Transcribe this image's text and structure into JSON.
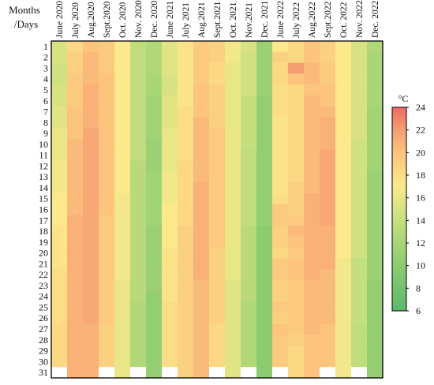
{
  "chart_data": {
    "type": "heatmap",
    "corner_label_line1": "Months",
    "corner_label_line2": "/Days",
    "columns": [
      "June 2020",
      "July 2020",
      "Aug.2020",
      "Sept.2020",
      "Oct. 2020",
      "Nov. 2020",
      "Dec. 2020",
      "June 2021",
      "July 2021",
      "Aug.2021",
      "Sept.2021",
      "Oct. 2021",
      "Nov.2021",
      "Dec. 2021",
      "June 2022",
      "July 2022",
      "Aug.2022",
      "Sept.2022",
      "Oct. 2022",
      "Nov. 2022",
      "Dec. 2022"
    ],
    "rows": [
      "1",
      "2",
      "3",
      "4",
      "5",
      "6",
      "7",
      "8",
      "9",
      "10",
      "11",
      "12",
      "13",
      "14",
      "15",
      "16",
      "17",
      "18",
      "19",
      "20",
      "21",
      "22",
      "23",
      "24",
      "25",
      "26",
      "27",
      "28",
      "29",
      "30",
      "31"
    ],
    "units": "°C",
    "colorbar": {
      "min": 6,
      "max": 24,
      "ticks": [
        6,
        8,
        10,
        12,
        14,
        16,
        18,
        20,
        22,
        24
      ]
    },
    "color_stops": [
      {
        "value": 6,
        "color": "#5cb96b"
      },
      {
        "value": 10,
        "color": "#8ccc70"
      },
      {
        "value": 14,
        "color": "#c6df7e"
      },
      {
        "value": 17,
        "color": "#fbe98c"
      },
      {
        "value": 20,
        "color": "#fcc47c"
      },
      {
        "value": 22,
        "color": "#f59e72"
      },
      {
        "value": 24,
        "color": "#ef6a62"
      }
    ],
    "missing_color": "#ffffff",
    "values": [
      [
        15,
        18.5,
        20,
        19.5,
        17,
        13.5,
        12.5,
        15.5,
        17.5,
        19.5,
        19,
        16.5,
        15,
        11,
        17,
        18.5,
        20,
        19,
        17,
        15,
        12.5
      ],
      [
        15,
        19,
        20.5,
        19.5,
        17,
        13.5,
        12.5,
        15.5,
        17.5,
        19.5,
        19,
        16.5,
        14.5,
        11,
        19,
        18.5,
        20,
        19,
        17,
        15,
        12
      ],
      [
        14.5,
        19,
        20.5,
        19.5,
        17,
        13.5,
        12.5,
        15.5,
        17.5,
        19.5,
        18.5,
        16,
        14.5,
        11,
        18.5,
        22,
        20.5,
        19.5,
        17,
        15,
        12
      ],
      [
        14.5,
        19.5,
        20.5,
        20,
        17,
        13.5,
        12,
        15,
        17.5,
        19.5,
        18.5,
        16,
        14.5,
        11,
        18.5,
        20,
        20.5,
        19.5,
        17,
        15,
        12
      ],
      [
        15,
        19.5,
        21,
        20,
        17,
        13.5,
        12,
        15,
        17.5,
        20,
        19,
        16,
        14.5,
        11,
        18,
        18.5,
        20,
        20,
        17,
        15,
        12
      ],
      [
        15,
        19.5,
        21,
        20,
        17,
        13.5,
        11.5,
        15.5,
        17.5,
        20,
        19,
        16,
        14,
        10.5,
        18,
        18.5,
        20.5,
        20,
        17,
        15,
        12
      ],
      [
        15.5,
        20,
        21,
        20,
        17,
        13.5,
        11.5,
        15.5,
        18,
        20,
        19,
        16,
        14,
        10.5,
        18,
        18.5,
        20.5,
        20.5,
        17,
        15,
        11.5
      ],
      [
        15.5,
        20,
        21,
        20,
        17,
        13.5,
        11.5,
        15.5,
        18,
        20.5,
        19,
        16,
        14,
        10.5,
        17.5,
        18.5,
        20.5,
        21,
        17,
        15,
        11.5
      ],
      [
        16,
        20,
        21.5,
        20,
        17,
        13.5,
        11.5,
        16,
        18,
        20.5,
        19.5,
        16,
        14,
        10.5,
        17.5,
        18.5,
        20.5,
        21,
        17,
        15,
        11.5
      ],
      [
        16,
        20.5,
        21.5,
        20,
        17,
        13.5,
        11,
        16,
        18,
        20.5,
        19.5,
        16,
        14,
        10.5,
        17.5,
        18.5,
        20.5,
        21,
        17,
        14.5,
        11.5
      ],
      [
        16,
        20.5,
        21.5,
        20,
        17,
        13.5,
        11,
        16,
        18,
        20.5,
        19.5,
        16,
        13.5,
        10.5,
        17.5,
        18.5,
        20.5,
        21.5,
        17,
        14.5,
        11.5
      ],
      [
        16.5,
        20.5,
        21.5,
        20,
        17,
        13,
        11,
        16,
        18.5,
        20.5,
        19.5,
        16,
        13.5,
        10.5,
        17.5,
        18.5,
        20.5,
        21.5,
        17,
        14.5,
        11.5
      ],
      [
        16.5,
        20.5,
        21.5,
        20,
        17,
        13,
        11.5,
        16.5,
        18.5,
        20.5,
        19.5,
        16,
        13.5,
        10.5,
        17.5,
        18.5,
        20.5,
        21.5,
        17,
        14.5,
        11
      ],
      [
        16.5,
        20.5,
        21.5,
        20,
        17,
        13,
        11.5,
        16.5,
        18.5,
        21,
        19.5,
        16,
        13.5,
        10.5,
        17.5,
        19,
        20.5,
        21.5,
        17,
        14.5,
        11
      ],
      [
        17,
        20.5,
        21.5,
        20,
        16.5,
        13,
        11.5,
        16.5,
        18.5,
        21,
        19.5,
        16,
        13.5,
        10.5,
        18,
        19,
        21,
        21.5,
        17,
        14.5,
        11
      ],
      [
        17,
        20.5,
        21.5,
        20,
        16.5,
        13,
        11.5,
        17,
        18.5,
        21,
        19.5,
        16,
        13.5,
        10.5,
        19.5,
        19,
        21,
        21.5,
        17,
        14.5,
        11
      ],
      [
        17,
        21,
        21.5,
        19.5,
        16.5,
        13,
        11.5,
        17,
        18.5,
        21,
        19.5,
        16,
        13.5,
        10.5,
        19.5,
        19.5,
        21,
        21.5,
        17,
        14.5,
        11
      ],
      [
        17.5,
        21,
        21.5,
        19.5,
        16.5,
        13,
        11,
        17,
        19,
        21,
        19.5,
        16,
        13,
        10,
        19,
        20.5,
        21,
        21,
        17,
        14.5,
        11
      ],
      [
        17.5,
        21,
        21.5,
        19.5,
        16.5,
        13,
        11,
        17,
        19,
        21,
        19.5,
        16,
        13,
        10,
        19,
        20,
        21,
        21,
        17,
        14.5,
        11
      ],
      [
        17.5,
        21,
        21.5,
        19.5,
        16.5,
        13,
        11,
        17.5,
        19,
        21,
        19,
        16,
        13,
        10,
        18.5,
        19.5,
        21,
        21,
        17,
        14.5,
        11
      ],
      [
        17.5,
        21,
        21.5,
        19.5,
        16.5,
        13,
        11,
        17.5,
        19,
        21,
        19,
        16,
        13,
        10,
        19.5,
        20,
        21,
        21,
        16.5,
        14,
        11
      ],
      [
        18,
        21,
        21.5,
        19.5,
        16.5,
        13,
        11,
        17.5,
        19,
        21,
        19,
        16,
        13,
        10,
        19.5,
        20,
        21,
        20.5,
        16.5,
        14,
        11
      ],
      [
        18,
        21,
        21.5,
        19.5,
        16,
        13,
        11,
        17.5,
        19,
        20.5,
        19,
        15.5,
        13,
        10,
        19,
        19.5,
        20.5,
        20.5,
        16.5,
        14,
        10.5
      ],
      [
        18,
        21,
        21.5,
        19.5,
        16,
        13,
        10.5,
        17.5,
        19,
        20.5,
        19,
        15.5,
        13,
        10,
        19,
        19.5,
        20.5,
        20.5,
        16.5,
        14,
        10.5
      ],
      [
        18,
        21,
        21.5,
        19.5,
        16,
        12.5,
        10.5,
        18,
        19,
        20.5,
        19,
        15.5,
        12.5,
        10,
        19.5,
        19.5,
        20.5,
        20.5,
        16.5,
        14,
        10.5
      ],
      [
        18,
        21,
        21.5,
        19.5,
        16,
        12.5,
        10.5,
        18,
        19,
        20.5,
        19,
        15.5,
        12.5,
        10,
        19,
        19.5,
        20.5,
        20.5,
        16.5,
        14,
        10.5
      ],
      [
        18.5,
        21,
        21,
        19,
        16,
        12.5,
        10.5,
        18,
        19,
        20.5,
        18.5,
        15.5,
        12.5,
        10,
        20,
        19.5,
        20.5,
        20,
        16.5,
        13.5,
        10.5
      ],
      [
        18.5,
        21,
        21,
        19,
        16,
        12.5,
        10.5,
        18,
        19,
        20.5,
        18.5,
        15.5,
        12.5,
        10,
        19.5,
        19,
        20,
        20,
        16.5,
        13.5,
        10.5
      ],
      [
        18.5,
        21,
        21,
        19,
        16,
        12.5,
        10.5,
        18,
        19,
        20.5,
        18.5,
        15.5,
        12.5,
        10,
        19.5,
        18.5,
        20,
        20,
        16.5,
        13.5,
        10.5
      ],
      [
        18.5,
        21,
        21,
        19,
        16,
        12.5,
        10.5,
        18,
        19,
        20.5,
        18.5,
        15.5,
        12.5,
        10,
        19.5,
        18.5,
        20,
        20,
        16.5,
        13.5,
        10.5
      ],
      [
        null,
        21,
        21,
        null,
        16,
        null,
        10.5,
        null,
        19,
        20.5,
        null,
        15.5,
        null,
        10,
        null,
        18.5,
        20,
        null,
        16.5,
        null,
        10.5
      ]
    ]
  }
}
